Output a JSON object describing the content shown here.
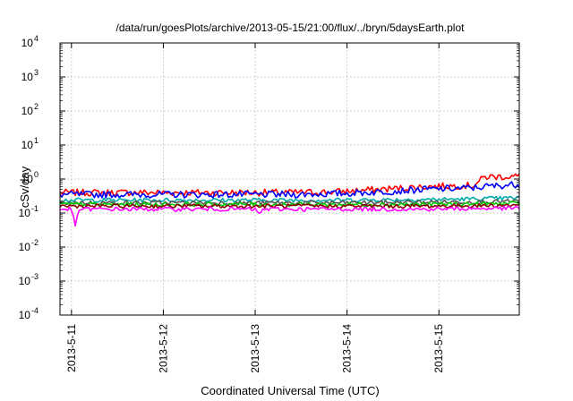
{
  "chart_data": {
    "type": "line",
    "title": "/data/run/goesPlots/archive/2013-05-15/21:00/flux/../bryn/5daysEarth.plot",
    "xlabel": "Coordinated Universal Time (UTC)",
    "ylabel": "cSv/day",
    "yscale": "log",
    "ylim": [
      0.0001,
      10000
    ],
    "xlim": [
      "2013-05-10 21:00",
      "2013-05-15 21:00"
    ],
    "grid": true,
    "x_tick_labels": [
      "2013-5-11",
      "2013-5-12",
      "2013-5-13",
      "2013-5-14",
      "2013-5-15"
    ],
    "y_ticks": [
      {
        "base": "10",
        "exp": "-4"
      },
      {
        "base": "10",
        "exp": "-3"
      },
      {
        "base": "10",
        "exp": "-2"
      },
      {
        "base": "10",
        "exp": "-1"
      },
      {
        "base": "10",
        "exp": "0"
      },
      {
        "base": "10",
        "exp": "1"
      },
      {
        "base": "10",
        "exp": "2"
      },
      {
        "base": "10",
        "exp": "3"
      },
      {
        "base": "10",
        "exp": "4"
      }
    ],
    "series": [
      {
        "color": "#ff0000",
        "values": [
          [
            "2013-05-10 21:00",
            0.4
          ],
          [
            "2013-05-11 09:00",
            0.4
          ],
          [
            "2013-05-11 21:00",
            0.4
          ],
          [
            "2013-05-12 09:00",
            0.4
          ],
          [
            "2013-05-12 21:00",
            0.4
          ],
          [
            "2013-05-13 09:00",
            0.4
          ],
          [
            "2013-05-13 21:00",
            0.42
          ],
          [
            "2013-05-14 09:00",
            0.5
          ],
          [
            "2013-05-14 21:00",
            0.6
          ],
          [
            "2013-05-15 09:00",
            0.65
          ],
          [
            "2013-05-15 12:00",
            1.15
          ],
          [
            "2013-05-15 21:00",
            1.2
          ]
        ]
      },
      {
        "color": "#0000ff",
        "values": [
          [
            "2013-05-10 21:00",
            0.35
          ],
          [
            "2013-05-11 09:00",
            0.35
          ],
          [
            "2013-05-11 21:00",
            0.35
          ],
          [
            "2013-05-12 09:00",
            0.35
          ],
          [
            "2013-05-12 21:00",
            0.35
          ],
          [
            "2013-05-13 09:00",
            0.35
          ],
          [
            "2013-05-13 21:00",
            0.37
          ],
          [
            "2013-05-14 09:00",
            0.42
          ],
          [
            "2013-05-14 21:00",
            0.5
          ],
          [
            "2013-05-15 09:00",
            0.55
          ],
          [
            "2013-05-15 12:00",
            0.6
          ],
          [
            "2013-05-15 21:00",
            0.7
          ]
        ]
      },
      {
        "color": "#00aaaa",
        "values": [
          [
            "2013-05-10 21:00",
            0.24
          ],
          [
            "2013-05-11 21:00",
            0.24
          ],
          [
            "2013-05-12 21:00",
            0.24
          ],
          [
            "2013-05-13 21:00",
            0.24
          ],
          [
            "2013-05-14 21:00",
            0.25
          ],
          [
            "2013-05-15 09:00",
            0.26
          ],
          [
            "2013-05-15 21:00",
            0.28
          ]
        ]
      },
      {
        "color": "#555555",
        "values": [
          [
            "2013-05-10 21:00",
            0.2
          ],
          [
            "2013-05-11 21:00",
            0.2
          ],
          [
            "2013-05-12 21:00",
            0.2
          ],
          [
            "2013-05-13 21:00",
            0.2
          ],
          [
            "2013-05-14 21:00",
            0.21
          ],
          [
            "2013-05-15 21:00",
            0.22
          ]
        ]
      },
      {
        "color": "#00cc00",
        "values": [
          [
            "2013-05-10 21:00",
            0.18
          ],
          [
            "2013-05-11 21:00",
            0.18
          ],
          [
            "2013-05-12 21:00",
            0.18
          ],
          [
            "2013-05-13 21:00",
            0.18
          ],
          [
            "2013-05-14 21:00",
            0.18
          ],
          [
            "2013-05-15 21:00",
            0.19
          ]
        ]
      },
      {
        "color": "#8b0000",
        "values": [
          [
            "2013-05-10 21:00",
            0.16
          ],
          [
            "2013-05-11 21:00",
            0.16
          ],
          [
            "2013-05-12 21:00",
            0.16
          ],
          [
            "2013-05-13 21:00",
            0.16
          ],
          [
            "2013-05-14 21:00",
            0.16
          ],
          [
            "2013-05-15 21:00",
            0.17
          ]
        ]
      },
      {
        "color": "#ff00ff",
        "values": [
          [
            "2013-05-10 21:00",
            0.13
          ],
          [
            "2013-05-11 00:00",
            0.13
          ],
          [
            "2013-05-11 01:00",
            0.04
          ],
          [
            "2013-05-11 02:00",
            0.13
          ],
          [
            "2013-05-11 21:00",
            0.13
          ],
          [
            "2013-05-12 21:00",
            0.13
          ],
          [
            "2013-05-13 00:00",
            0.13
          ],
          [
            "2013-05-13 01:00",
            0.09
          ],
          [
            "2013-05-13 02:00",
            0.13
          ],
          [
            "2013-05-13 21:00",
            0.13
          ],
          [
            "2013-05-14 21:00",
            0.13
          ],
          [
            "2013-05-15 21:00",
            0.14
          ]
        ]
      }
    ]
  }
}
